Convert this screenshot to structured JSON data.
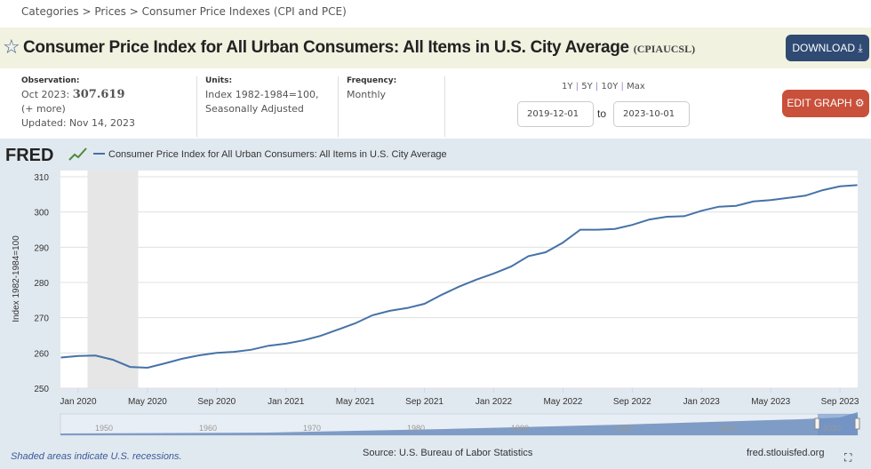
{
  "breadcrumb": [
    "Categories",
    ">",
    "Prices",
    ">",
    "Consumer Price Indexes (CPI and PCE)"
  ],
  "header": {
    "title": "Consumer Price Index for All Urban Consumers: All Items in U.S. City Average",
    "series_id": "(CPIAUCSL)",
    "download": "DOWNLOAD ⤓"
  },
  "info": {
    "obs_label": "Observation:",
    "obs_date": "Oct 2023:",
    "obs_value": "307.619",
    "more": "(+ more)",
    "updated": "Updated: Nov 14, 2023",
    "units_label": "Units:",
    "units_1": "Index 1982-1984=100,",
    "units_2": "Seasonally Adjusted",
    "freq_label": "Frequency:",
    "freq": "Monthly"
  },
  "ranges": [
    "1Y",
    "5Y",
    "10Y",
    "Max"
  ],
  "range_sep": "|",
  "date_from": "2019-12-01",
  "date_to": "2023-10-01",
  "to_label": "to",
  "edit_graph": "EDIT GRAPH ⚙",
  "logo": "FRED",
  "footer": {
    "recession_note": "Shaded areas indicate U.S. recessions.",
    "source": "Source: U.S. Bureau of Labor Statistics",
    "site": "fred.stlouisfed.org"
  },
  "navigator_labels": [
    "1950",
    "1960",
    "1970",
    "1980",
    "1990",
    "2000",
    "2010",
    "2020"
  ],
  "colors": {
    "line": "#4572a7",
    "recession": "#e6e6e6",
    "download": "#2f4a73",
    "edit": "#c9503a"
  },
  "chart_data": {
    "type": "line",
    "legend": "Consumer Price Index for All Urban Consumers: All Items in U.S. City Average",
    "ylabel": "Index 1982-1984=100",
    "ylim": [
      250,
      310
    ],
    "yticks": [
      "250",
      "260",
      "270",
      "280",
      "290",
      "300",
      "310"
    ],
    "xticks": [
      "Jan 2020",
      "May 2020",
      "Sep 2020",
      "Jan 2021",
      "May 2021",
      "Sep 2021",
      "Jan 2022",
      "May 2022",
      "Sep 2022",
      "Jan 2023",
      "May 2023",
      "Sep 2023"
    ],
    "recession": [
      "2020-02",
      "2020-04"
    ],
    "x_start": "2019-12",
    "values": [
      258.687,
      259.127,
      259.25,
      258.076,
      256.032,
      255.802,
      257.042,
      258.352,
      259.316,
      259.997,
      260.319,
      260.911,
      262.045,
      262.639,
      263.573,
      264.847,
      266.625,
      268.404,
      270.71,
      271.965,
      272.752,
      273.942,
      276.528,
      278.824,
      280.806,
      282.542,
      284.525,
      287.467,
      288.582,
      291.314,
      294.977,
      294.977,
      295.209,
      296.341,
      297.863,
      298.648,
      298.812,
      300.356,
      301.509,
      301.744,
      302.992,
      303.365,
      304.003,
      304.628,
      306.187,
      307.288,
      307.619
    ]
  }
}
